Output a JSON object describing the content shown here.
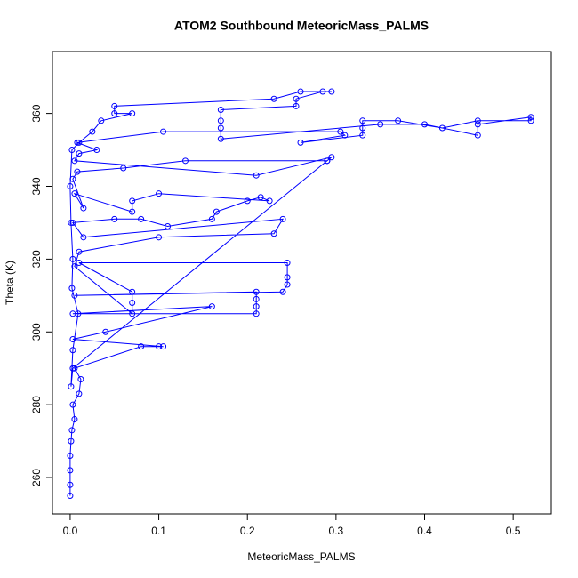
{
  "chart_data": {
    "type": "line",
    "title": "ATOM2 Southbound MeteoricMass_PALMS",
    "x_label": "MeteoricMass_PALMS",
    "y_label": "Theta (K)",
    "color": "#0000ff",
    "markers": true,
    "xlim": [
      -0.02,
      0.543
    ],
    "ylim": [
      250,
      377
    ],
    "xticks": [
      {
        "value": 0,
        "label": "0.0"
      },
      0.1,
      0.2,
      0.3,
      0.4,
      0.5
    ],
    "yticks": [
      260,
      280,
      300,
      320,
      340,
      360
    ],
    "x": [
      0,
      0,
      0,
      0,
      0.001,
      0.002,
      0.005,
      0.003,
      0.01,
      0.012,
      0.005,
      0.08,
      0.1,
      0.105,
      0.003,
      0.04,
      0.16,
      0.003,
      0.21,
      0.21,
      0.21,
      0.21,
      0.005,
      0.24,
      0.245,
      0.245,
      0.245,
      0.01,
      0.07,
      0.07,
      0.07,
      0.005,
      0.01,
      0.1,
      0.23,
      0.24,
      0.015,
      0.003,
      0.05,
      0.08,
      0.11,
      0.16,
      0.165,
      0.2,
      0.215,
      0.225,
      0.1,
      0.07,
      0.07,
      0.005,
      0.015,
      0.003,
      0.008,
      0.06,
      0.13,
      0.29,
      0.295,
      0.21,
      0.005,
      0.01,
      0.03,
      0.008,
      0.105,
      0.305,
      0.31,
      0.26,
      0.33,
      0.33,
      0.33,
      0.37,
      0.42,
      0.46,
      0.52,
      0.52,
      0.46,
      0.46,
      0.4,
      0.35,
      0.17,
      0.17,
      0.17,
      0.17,
      0.255,
      0.255,
      0.285,
      0.295,
      0.26,
      0.23,
      0.05,
      0.05,
      0.07,
      0.035,
      0.025,
      0.01,
      0.002,
      0,
      0.001,
      0.003,
      0.002,
      0.009,
      0.003,
      0.001,
      0.003,
      0.29
    ],
    "values": [
      255,
      258,
      262,
      266,
      270,
      273,
      276,
      280,
      283,
      287,
      290,
      296,
      296,
      296,
      298,
      300,
      307,
      305,
      305,
      307,
      309,
      311,
      310,
      311,
      313,
      315,
      319,
      319,
      311,
      308,
      305,
      318,
      322,
      326,
      327,
      331,
      326,
      330,
      331,
      331,
      329,
      331,
      333,
      336,
      337,
      336,
      338,
      336,
      333,
      338,
      334,
      342,
      344,
      345,
      347,
      347,
      348,
      343,
      347,
      349,
      350,
      352,
      355,
      355,
      354,
      352,
      354,
      356,
      358,
      358,
      356,
      358,
      358,
      359,
      357,
      354,
      357,
      357,
      353,
      356,
      358,
      361,
      362,
      364,
      366,
      366,
      366,
      364,
      362,
      360,
      360,
      358,
      355,
      352,
      350,
      340,
      330,
      320,
      312,
      305,
      295,
      285,
      290,
      347
    ]
  }
}
